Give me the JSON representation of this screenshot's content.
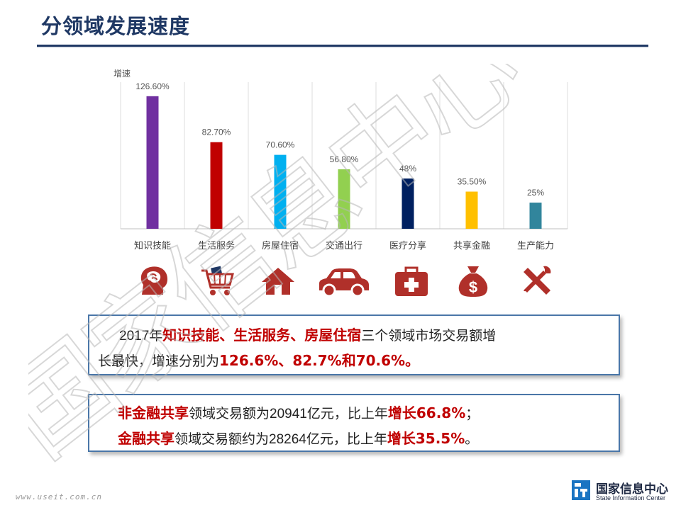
{
  "page": {
    "title": "分领域发展速度"
  },
  "chart_data": {
    "type": "bar",
    "ylabel": "增速",
    "categories": [
      "知识技能",
      "生活服务",
      "房屋住宿",
      "交通出行",
      "医疗分享",
      "共享金融",
      "生产能力"
    ],
    "values": [
      126.6,
      82.7,
      70.6,
      56.8,
      48,
      35.5,
      25
    ],
    "value_labels": [
      "126.60%",
      "82.70%",
      "70.60%",
      "56.80%",
      "48%",
      "35.50%",
      "25%"
    ],
    "colors": [
      "#7030a0",
      "#c00000",
      "#00b0f0",
      "#92d050",
      "#002060",
      "#ffc000",
      "#31859c"
    ],
    "ylim": [
      0,
      140
    ],
    "grid": "vertical category separators",
    "legend": "none"
  },
  "icons": [
    {
      "name": "brain-head-icon",
      "color": "#b0302a"
    },
    {
      "name": "shopping-cart-icon",
      "color": "#b0302a"
    },
    {
      "name": "house-icon",
      "color": "#b0302a"
    },
    {
      "name": "car-icon",
      "color": "#b0302a"
    },
    {
      "name": "first-aid-kit-icon",
      "color": "#b0302a"
    },
    {
      "name": "money-bag-icon",
      "color": "#b0302a"
    },
    {
      "name": "tools-icon",
      "color": "#b0302a"
    }
  ],
  "box1": {
    "year": "2017年",
    "domains": "知识技能、生活服务、房屋住宿",
    "text_mid": "三个领域市场交易额增",
    "text_line2_prefix": "长最快，增速分别为",
    "rates": "126.6%、82.7%和70.6%。"
  },
  "box2": {
    "line1_highlight": "非金融共享",
    "line1_text_a": "领域交易额为",
    "line1_amount": "20941亿元",
    "line1_text_b": "，比上年",
    "line1_growth": "增长66.8%",
    "line1_end": "；",
    "line2_highlight": "金融共享",
    "line2_text_a": "领域交易额约为",
    "line2_amount": "28264亿元",
    "line2_text_b": "，比上年",
    "line2_growth": "增长35.5%",
    "line2_end": "。"
  },
  "watermark": {
    "text": "国家信息中心"
  },
  "footer": {
    "site": "www.useit.com.cn",
    "logo_cn": "国家信息中心",
    "logo_en": "State Information Center"
  }
}
